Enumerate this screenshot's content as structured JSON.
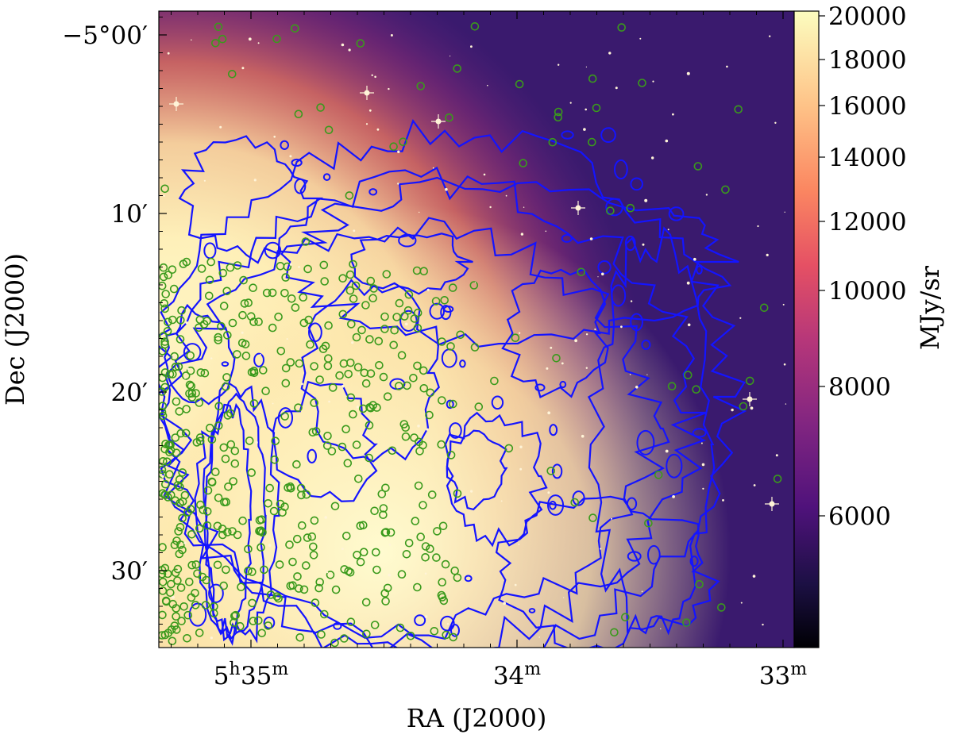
{
  "chart_data": {
    "type": "heatmap",
    "title": "",
    "xlabel": "RA (J2000)",
    "ylabel": "Dec (J2000)",
    "colorbar_label": "MJy/sr",
    "colormap": "magma",
    "colorbar_range": [
      4200,
      20000
    ],
    "colorbar_ticks": [
      "20000",
      "18000",
      "16000",
      "14000",
      "12000",
      "10000",
      "8000",
      "6000"
    ],
    "colorbar_tick_values": [
      20000,
      18000,
      16000,
      14000,
      12000,
      10000,
      8000,
      6000
    ],
    "x_ticks": [
      {
        "base": "5",
        "sup1": "h",
        "mid": "35",
        "sup2": "m",
        "ra_min": 35.0
      },
      {
        "base": "",
        "sup1": "",
        "mid": "34",
        "sup2": "m",
        "ra_min": 34.0
      },
      {
        "base": "",
        "sup1": "",
        "mid": "33",
        "sup2": "m",
        "ra_min": 33.0
      }
    ],
    "y_ticks": [
      {
        "label": "−5°00′",
        "dec_arcmin": 0
      },
      {
        "label": "10′",
        "dec_arcmin": 10
      },
      {
        "label": "20′",
        "dec_arcmin": 20
      },
      {
        "label": "30′",
        "dec_arcmin": 30
      }
    ],
    "overlays": {
      "contour_color": "#1414ff",
      "source_marker_color": "#3a9a1c",
      "source_marker": "open-circle"
    },
    "grid": false,
    "legend": "none"
  }
}
